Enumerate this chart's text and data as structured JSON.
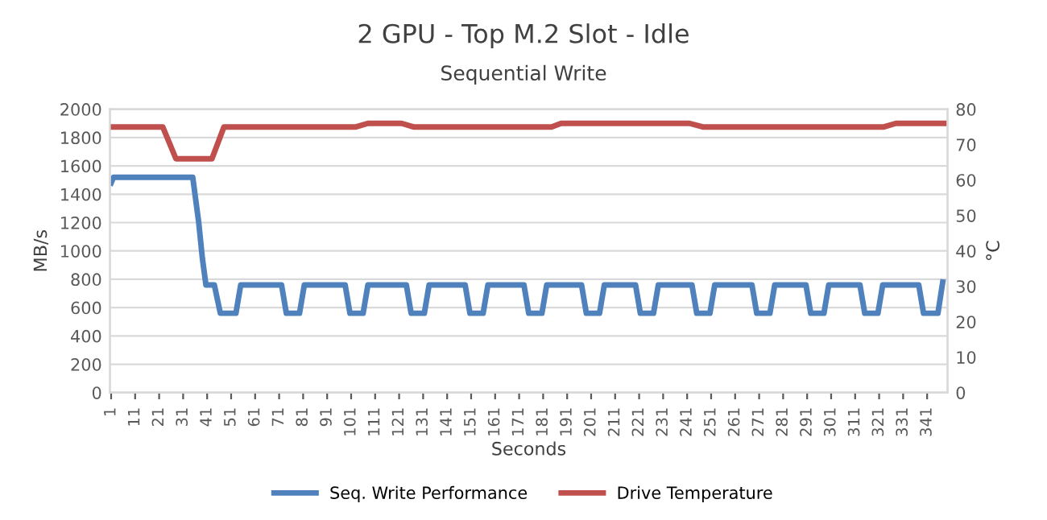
{
  "chart_data": {
    "type": "line",
    "title": "2 GPU - Top M.2 Slot - Idle",
    "subtitle": "Sequential Write",
    "xlabel": "Seconds",
    "ylabel": "MB/s",
    "y2label": "°C",
    "xlim": [
      0.5,
      349.5
    ],
    "xticks": [
      1,
      11,
      21,
      31,
      41,
      51,
      61,
      71,
      81,
      91,
      101,
      111,
      121,
      131,
      141,
      151,
      161,
      171,
      181,
      191,
      201,
      211,
      221,
      231,
      241,
      251,
      261,
      271,
      281,
      291,
      301,
      311,
      321,
      331,
      341
    ],
    "ylim": [
      0,
      2000
    ],
    "yticks": [
      0,
      200,
      400,
      600,
      800,
      1000,
      1200,
      1400,
      1600,
      1800,
      2000
    ],
    "y2lim": [
      0,
      80
    ],
    "y2ticks": [
      0,
      10,
      20,
      30,
      40,
      50,
      60,
      70,
      80
    ],
    "grid": "y",
    "legend": "bottom",
    "marker": "none",
    "line_style": "solid",
    "series": [
      {
        "name": "Seq. Write Performance",
        "color": "#4f81bd",
        "x": [
          1,
          2,
          35,
          37.5,
          39,
          40.5,
          44,
          46.5,
          53,
          55,
          72,
          74,
          79.5,
          81.5,
          98.5,
          100.5,
          106,
          108,
          124,
          126,
          131.5,
          133.5,
          148.5,
          150.5,
          156,
          158,
          173,
          175,
          180.5,
          182.5,
          197,
          199,
          204.5,
          206.5,
          219.5,
          221.5,
          227,
          229,
          243,
          245,
          250.5,
          252.5,
          268,
          270,
          275.5,
          277.5,
          290.5,
          292.5,
          298,
          300,
          313,
          315,
          320.5,
          322.5,
          337.5,
          339.5,
          345.5,
          347.5
        ],
        "values": [
          1480,
          1520,
          1520,
          1200,
          950,
          760,
          760,
          560,
          560,
          760,
          760,
          560,
          560,
          760,
          760,
          560,
          560,
          760,
          760,
          560,
          560,
          760,
          760,
          560,
          560,
          760,
          760,
          560,
          560,
          760,
          760,
          560,
          560,
          760,
          760,
          560,
          560,
          760,
          760,
          560,
          560,
          760,
          760,
          560,
          560,
          760,
          760,
          560,
          560,
          760,
          760,
          560,
          560,
          760,
          760,
          560,
          560,
          780
        ]
      },
      {
        "name": "Drive Temperature",
        "color": "#c0504d",
        "axis": "y2",
        "x": [
          1,
          22.5,
          28,
          43,
          48,
          103,
          108,
          122,
          127,
          184.5,
          188.5,
          242,
          247.5,
          323,
          328,
          348
        ],
        "values": [
          75,
          75,
          66,
          66,
          75,
          75,
          76,
          76,
          75,
          75,
          76,
          76,
          75,
          75,
          76,
          76
        ]
      }
    ]
  }
}
